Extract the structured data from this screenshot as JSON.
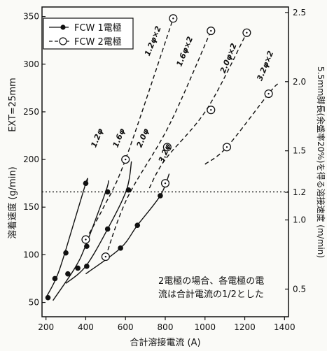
{
  "chart_data": {
    "type": "line",
    "xlabel": "合計溶接電流 (A)",
    "ylabel_left": "溶着速度 (g/min)",
    "ylabel_right": "5.5mm脚長(余盛率20%)を得る溶接速度 (m/min)",
    "ext_label": "EXT=25mm",
    "xlim": [
      180,
      1420
    ],
    "ylim_left": [
      35,
      360
    ],
    "ylim_right": [
      0.3,
      2.54
    ],
    "x_ticks": [
      200,
      400,
      600,
      800,
      1000,
      1200,
      1400
    ],
    "y_ticks_left": [
      50,
      100,
      150,
      200,
      250,
      300,
      350
    ],
    "y_ticks_right": [
      "0.5",
      "1.0",
      "1.2",
      "1.5",
      "2.0",
      "2.5"
    ],
    "legend": [
      {
        "name": "FCW 1電極",
        "style": "solid",
        "marker": "filled"
      },
      {
        "name": "FCW 2電極",
        "style": "dashed",
        "marker": "open"
      }
    ],
    "reference_line": {
      "y": 166,
      "style": "dotted"
    },
    "note": [
      "2電極の場合、各電極の電",
      "流は合計電流の1/2とした"
    ],
    "series": [
      {
        "name": "1.2φ",
        "electrodes": 1,
        "x": [
          200,
          250,
          295,
          400,
          405
        ],
        "y": [
          55,
          75,
          102,
          175,
          174
        ]
      },
      {
        "name": "1.6φ",
        "electrodes": 1,
        "x": [
          235,
          345,
          400,
          500,
          515
        ],
        "y": [
          52,
          86,
          110,
          166,
          178
        ]
      },
      {
        "name": "2.0φ",
        "electrodes": 1,
        "x": [
          300,
          400,
          510,
          605,
          630
        ],
        "y": [
          70,
          88,
          127,
          168,
          198
        ]
      },
      {
        "name": "3.2φ",
        "electrodes": 1,
        "x": [
          400,
          575,
          660,
          775,
          820
        ],
        "y": [
          80,
          107,
          131,
          162,
          185
        ]
      },
      {
        "name": "1.2φ×2",
        "electrodes": 2,
        "x": [
          400,
          490,
          600,
          840
        ],
        "y": [
          116,
          150,
          200,
          348
        ]
      },
      {
        "name": "1.6φ×2",
        "electrodes": 2,
        "x": [
          500,
          610,
          820,
          1030
        ],
        "y": [
          98,
          160,
          236,
          335
        ]
      },
      {
        "name": "2.0φ×2",
        "electrodes": 2,
        "x": [
          720,
          800,
          1010,
          1210
        ],
        "y": [
          170,
          200,
          253,
          333
        ]
      },
      {
        "name": "3.2φ×2",
        "electrodes": 2,
        "x": [
          1000,
          1110,
          1320,
          1370
        ],
        "y": [
          195,
          213,
          269,
          280
        ]
      }
    ],
    "markers": {
      "filled": [
        [
          210,
          55
        ],
        [
          245,
          75
        ],
        [
          300,
          102
        ],
        [
          400,
          175
        ],
        [
          360,
          86
        ],
        [
          405,
          109
        ],
        [
          510,
          166
        ],
        [
          310,
          80
        ],
        [
          405,
          88
        ],
        [
          510,
          127
        ],
        [
          615,
          168
        ],
        [
          575,
          107
        ],
        [
          660,
          131
        ],
        [
          775,
          162
        ]
      ],
      "open": [
        [
          400,
          116
        ],
        [
          500,
          98
        ],
        [
          600,
          200
        ],
        [
          840,
          348
        ],
        [
          810,
          213
        ],
        [
          1030,
          335
        ],
        [
          800,
          175
        ],
        [
          1030,
          252
        ],
        [
          1210,
          333
        ],
        [
          1110,
          213
        ],
        [
          1320,
          269
        ]
      ]
    },
    "series_labels": [
      {
        "text": "1.2φ",
        "x": 450,
        "y": 212
      },
      {
        "text": "1.6φ",
        "x": 560,
        "y": 212
      },
      {
        "text": "2.0φ",
        "x": 680,
        "y": 212
      },
      {
        "text": "3.2φ",
        "x": 790,
        "y": 196
      },
      {
        "text": "1.2φ×2",
        "x": 720,
        "y": 308
      },
      {
        "text": "1.6φ×2",
        "x": 880,
        "y": 297
      },
      {
        "text": "2.0φ×2",
        "x": 1100,
        "y": 290
      },
      {
        "text": "3.2φ×2",
        "x": 1285,
        "y": 282
      }
    ]
  }
}
